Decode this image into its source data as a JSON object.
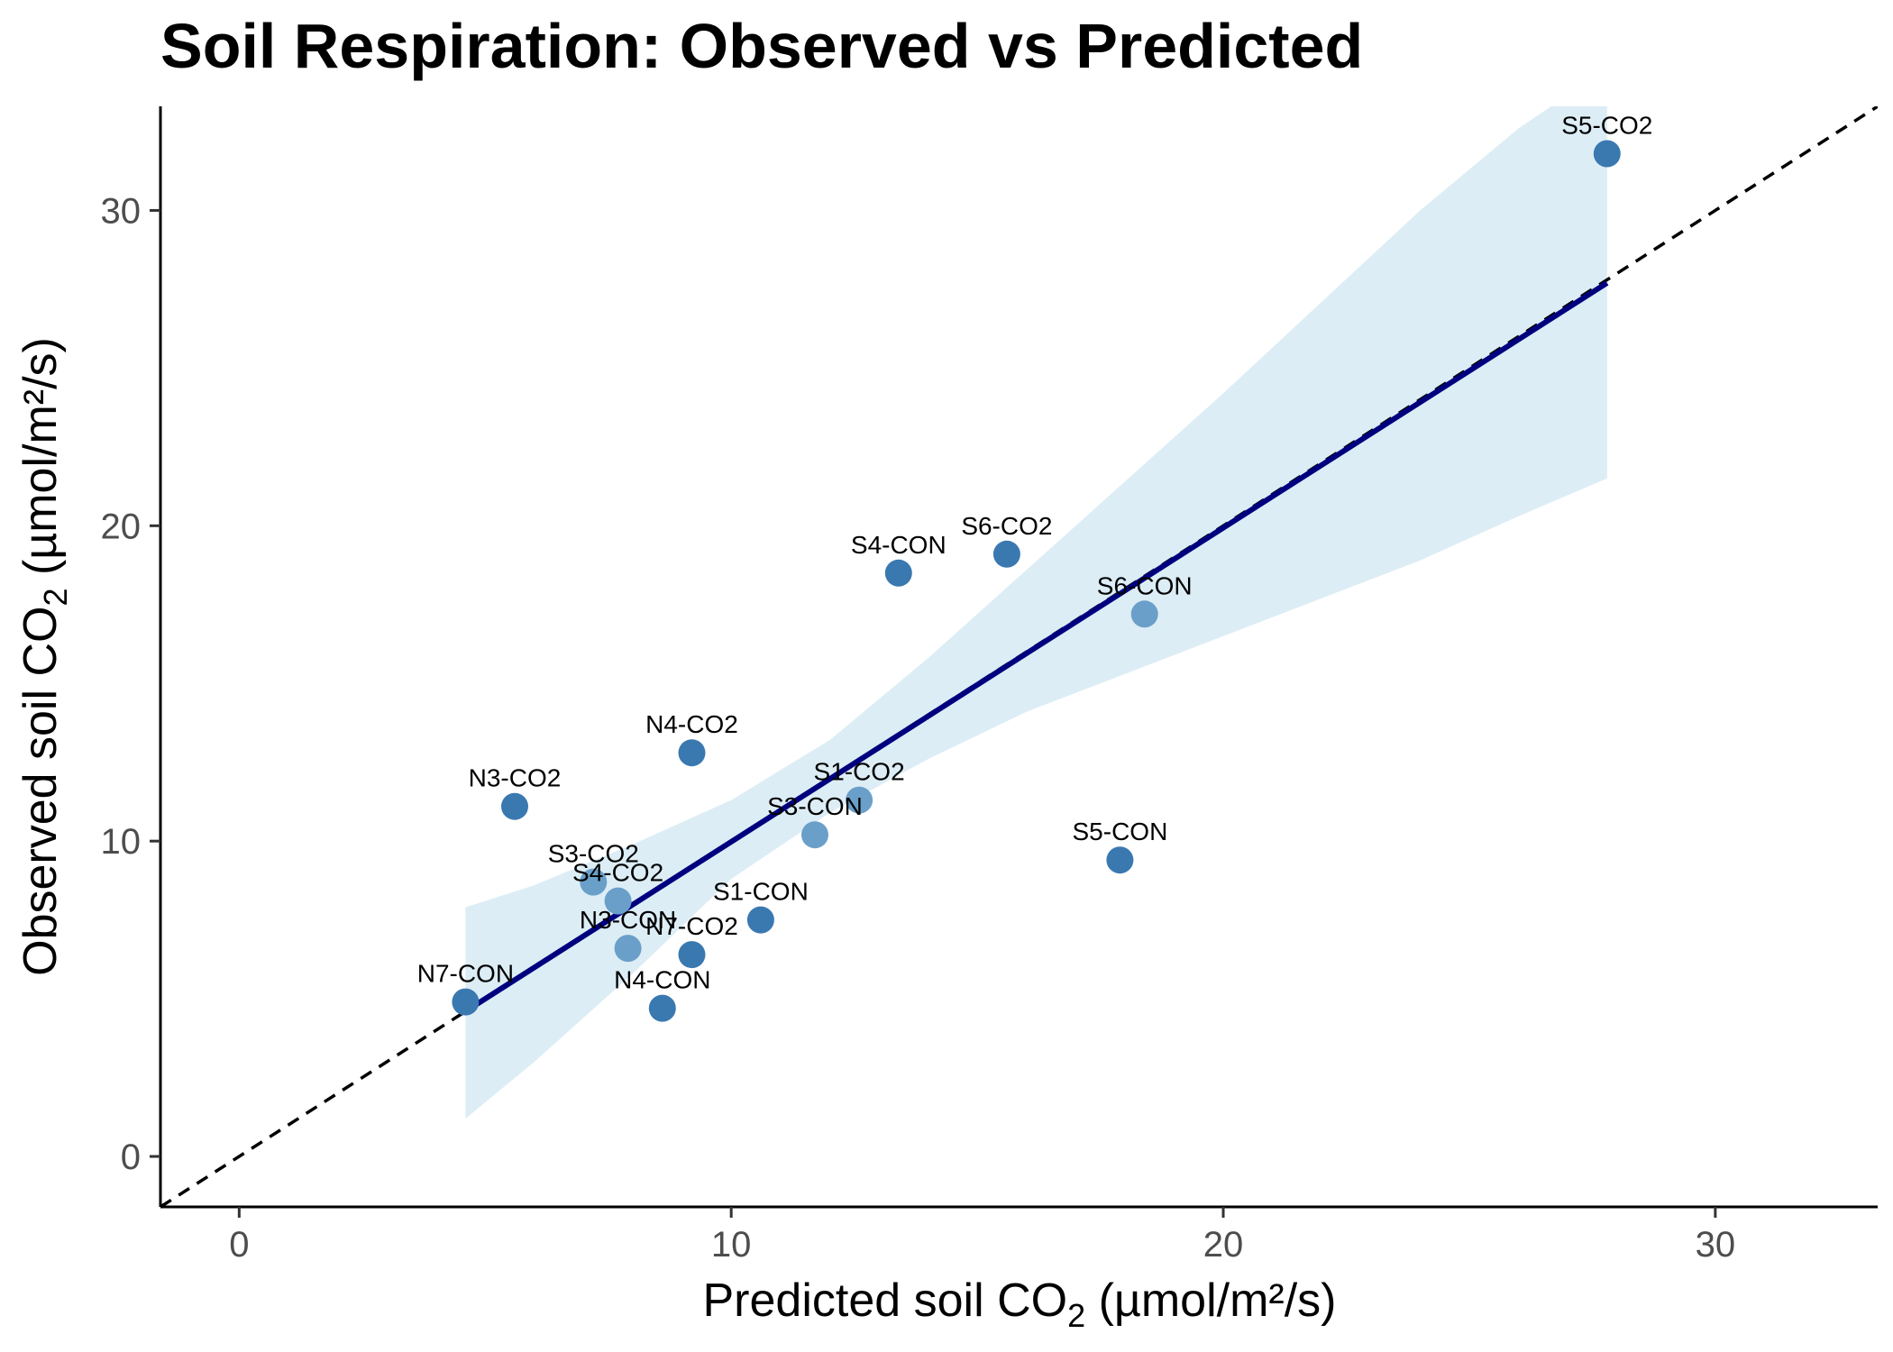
{
  "chart_data": {
    "type": "scatter",
    "title": "Soil Respiration: Observed vs Predicted",
    "xlabel": {
      "prefix": "Predicted soil CO",
      "sub": "2",
      "suffix": " (µmol/m²/s)"
    },
    "ylabel": {
      "prefix": "Observed soil CO",
      "sub": "2",
      "suffix": " (µmol/m²/s)"
    },
    "xlim": [
      -1.6,
      33.3
    ],
    "ylim": [
      -1.6,
      33.3
    ],
    "x_ticks": [
      0,
      10,
      20,
      30
    ],
    "y_ticks": [
      0,
      10,
      20,
      30
    ],
    "x_tick_labels": [
      "0",
      "10",
      "20",
      "30"
    ],
    "y_tick_labels": [
      "0",
      "10",
      "20",
      "30"
    ],
    "grid": false,
    "legend": "none",
    "point_color": "#3a78b0",
    "point_color_light": "#6a9fc9",
    "fit_line_color": "#00007f",
    "band_color": "#dcedf5",
    "identity_line": {
      "style": "dashed",
      "color": "#000000"
    },
    "fit_line": {
      "x": [
        4.6,
        27.8
      ],
      "y": [
        4.6,
        27.7
      ]
    },
    "confidence_band": {
      "x": [
        4.6,
        6,
        8,
        10,
        12,
        14,
        16,
        18,
        20,
        22,
        24,
        26,
        27.8
      ],
      "upper": [
        7.9,
        8.6,
        9.9,
        11.3,
        13.2,
        15.8,
        18.6,
        21.4,
        24.2,
        27.1,
        30.0,
        32.6,
        34.5
      ],
      "lower": [
        1.2,
        3.0,
        5.8,
        8.8,
        10.9,
        12.6,
        14.1,
        15.3,
        16.5,
        17.7,
        18.9,
        20.3,
        21.5
      ]
    },
    "points": [
      {
        "label": "S5-CO2",
        "x": 27.8,
        "y": 31.8,
        "tone": "dark"
      },
      {
        "label": "S6-CO2",
        "x": 15.6,
        "y": 19.1,
        "tone": "dark"
      },
      {
        "label": "S4-CON",
        "x": 13.4,
        "y": 18.5,
        "tone": "dark"
      },
      {
        "label": "S6-CON",
        "x": 18.4,
        "y": 17.2,
        "tone": "light"
      },
      {
        "label": "N4-CO2",
        "x": 9.2,
        "y": 12.8,
        "tone": "dark"
      },
      {
        "label": "S1-CO2",
        "x": 12.6,
        "y": 11.3,
        "tone": "light"
      },
      {
        "label": "N3-CO2",
        "x": 5.6,
        "y": 11.1,
        "tone": "dark"
      },
      {
        "label": "S3-CON",
        "x": 11.7,
        "y": 10.2,
        "tone": "light"
      },
      {
        "label": "S5-CON",
        "x": 17.9,
        "y": 9.4,
        "tone": "dark"
      },
      {
        "label": "S3-CO2",
        "x": 7.2,
        "y": 8.7,
        "tone": "light"
      },
      {
        "label": "S4-CO2",
        "x": 7.7,
        "y": 8.1,
        "tone": "light"
      },
      {
        "label": "S1-CON",
        "x": 10.6,
        "y": 7.5,
        "tone": "dark"
      },
      {
        "label": "N3-CON",
        "x": 7.9,
        "y": 6.6,
        "tone": "light"
      },
      {
        "label": "N7-CO2",
        "x": 9.2,
        "y": 6.4,
        "tone": "dark"
      },
      {
        "label": "N7-CON",
        "x": 4.6,
        "y": 4.9,
        "tone": "dark"
      },
      {
        "label": "N4-CON",
        "x": 8.6,
        "y": 4.7,
        "tone": "dark"
      }
    ]
  }
}
